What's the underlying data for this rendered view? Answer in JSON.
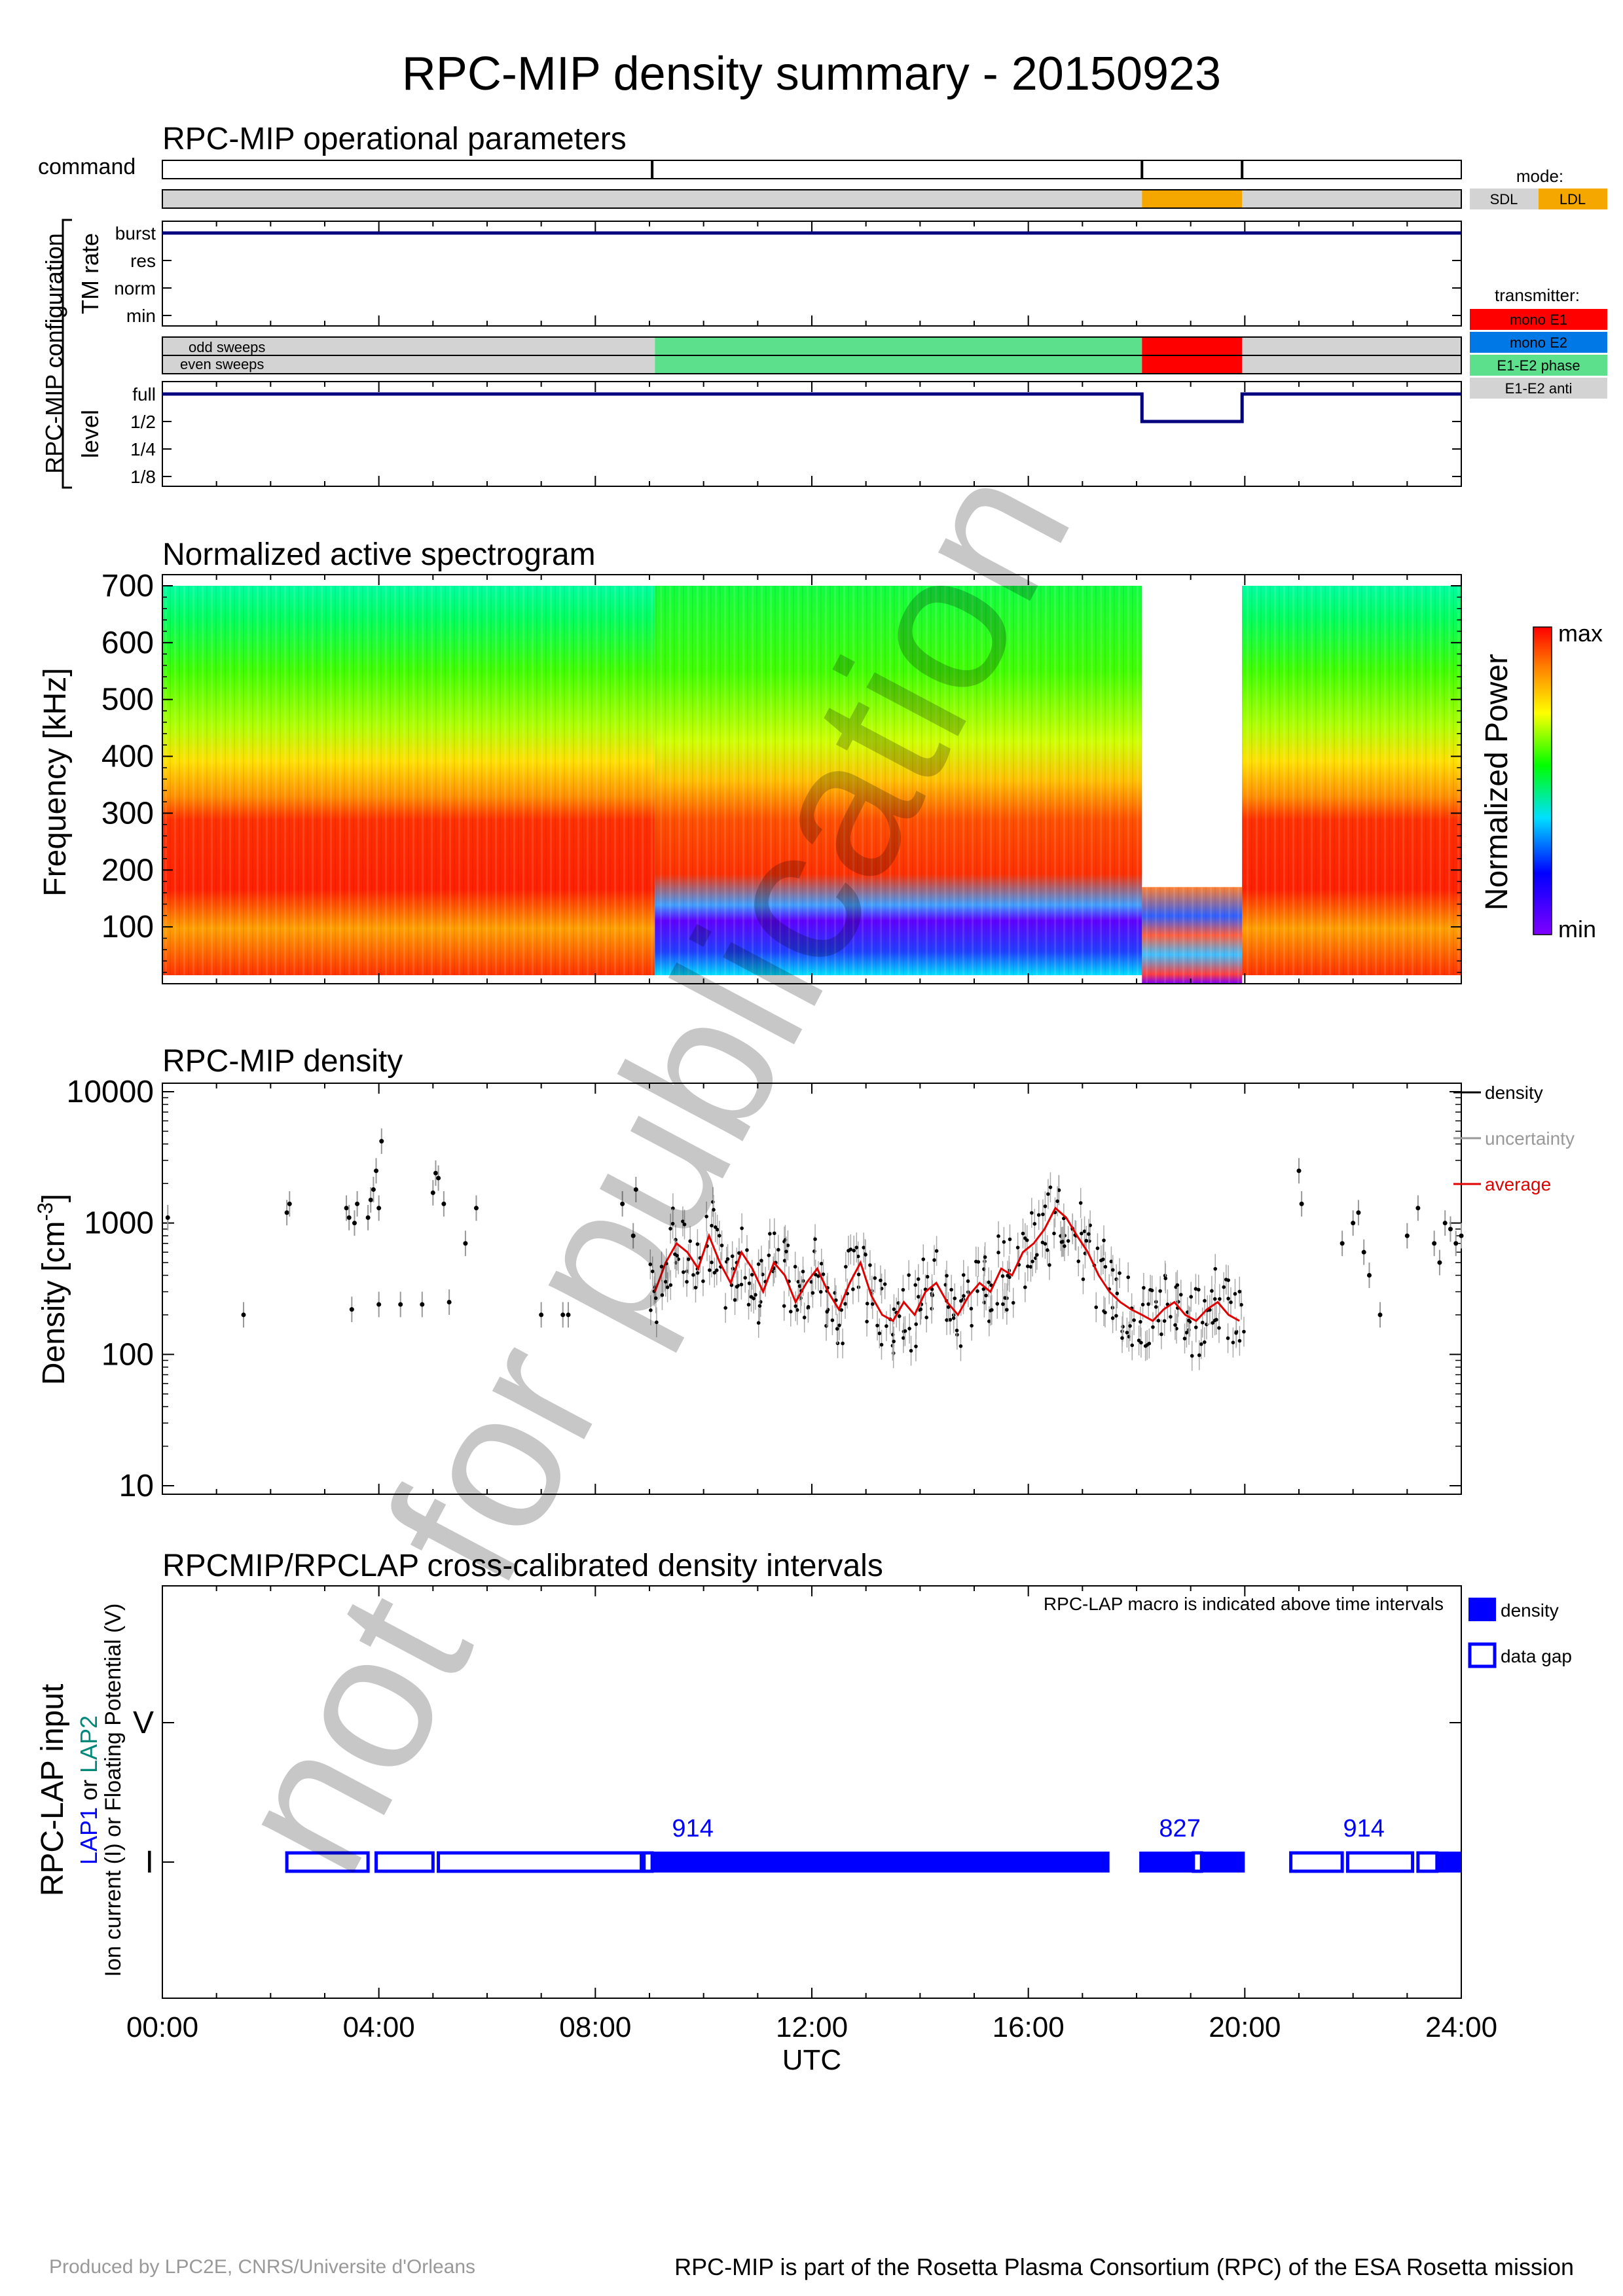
{
  "title": "RPC-MIP density summary - 20150923",
  "watermark": "not for publication",
  "footer": {
    "left": "Produced by LPC2E, CNRS/Universite d'Orleans",
    "right": "RPC-MIP is part of the Rosetta Plasma Consortium (RPC) of the ESA Rosetta mission"
  },
  "x_axis": {
    "label": "UTC",
    "ticks": [
      "00:00",
      "04:00",
      "08:00",
      "12:00",
      "16:00",
      "20:00",
      "24:00"
    ],
    "range_hours": [
      0,
      24
    ]
  },
  "colors": {
    "mode_sdl": "#d3d3d3",
    "mode_ldl": "#f5a700",
    "mono_e1": "#ff0000",
    "mono_e2": "#0078e6",
    "e1e2_phase": "#5ce08c",
    "e1e2_anti": "#d3d3d3",
    "navy": "#00007f",
    "lap_blue": "#0000ff",
    "lap2_teal": "#00897b"
  },
  "panel1": {
    "title": "RPC-MIP operational parameters",
    "command_label": "command",
    "group_label": "RPC-MIP configuration",
    "tm_label": "TM rate",
    "level_label": "level",
    "tm_levels": [
      "burst",
      "res",
      "norm",
      "min"
    ],
    "sweep_labels": [
      "odd sweeps",
      "even sweeps"
    ],
    "level_ticks": [
      "full",
      "1/2",
      "1/4",
      "1/8"
    ],
    "command_times_h": [
      9.05,
      18.1,
      19.95
    ],
    "mode_segments": [
      {
        "start": 0,
        "end": 18.1,
        "mode": "SDL"
      },
      {
        "start": 18.1,
        "end": 19.95,
        "mode": "LDL"
      },
      {
        "start": 19.95,
        "end": 24,
        "mode": "SDL"
      }
    ],
    "transmitter_segments": [
      {
        "start": 0,
        "end": 9.1,
        "tx": "E1-E2 anti"
      },
      {
        "start": 9.1,
        "end": 18.1,
        "tx": "E1-E2 phase"
      },
      {
        "start": 18.1,
        "end": 19.95,
        "tx": "mono E1"
      },
      {
        "start": 19.95,
        "end": 24,
        "tx": "E1-E2 anti"
      }
    ],
    "tm_rate_value": "burst",
    "level_segments": [
      {
        "start": 0,
        "end": 18.1,
        "level": "full"
      },
      {
        "start": 18.1,
        "end": 19.95,
        "level": "1/2"
      },
      {
        "start": 19.95,
        "end": 24,
        "level": "full"
      }
    ],
    "mode_legend": {
      "title": "mode:",
      "items": [
        "SDL",
        "LDL"
      ]
    },
    "transmitter_legend": {
      "title": "transmitter:",
      "items": [
        "mono E1",
        "mono E2",
        "E1-E2 phase",
        "E1-E2 anti"
      ]
    }
  },
  "chart_data": [
    {
      "type": "heatmap",
      "title": "Normalized active spectrogram",
      "ylabel": "Frequency [kHz]",
      "ylim": [
        0,
        700
      ],
      "yticks": [
        100,
        200,
        300,
        400,
        500,
        600,
        700
      ],
      "colorbar": {
        "label": "Normalized Power",
        "max": "max",
        "min": "min"
      },
      "blocks": [
        {
          "start": 0,
          "end": 9.1,
          "fmin": 15,
          "fmax": 700,
          "style": "sdl"
        },
        {
          "start": 9.1,
          "end": 18.1,
          "fmin": 15,
          "fmax": 700,
          "style": "sdl_low"
        },
        {
          "start": 18.1,
          "end": 19.95,
          "fmin": 0,
          "fmax": 170,
          "style": "ldl"
        },
        {
          "start": 19.95,
          "end": 24,
          "fmin": 15,
          "fmax": 700,
          "style": "sdl"
        }
      ]
    },
    {
      "type": "scatter",
      "title": "RPC-MIP density",
      "ylabel": "Density [cm",
      "ylabel_sup": "-3",
      "ylabel_end": "]",
      "yscale": "log",
      "ylim": [
        10,
        10000
      ],
      "yticks": [
        "10",
        "100",
        "1000",
        "10000"
      ],
      "legend": [
        "density",
        "uncertainty",
        "average"
      ],
      "series": [
        {
          "name": "density",
          "x": [
            0.1,
            1.5,
            2.3,
            2.35,
            3.4,
            3.45,
            3.5,
            3.55,
            3.6,
            3.8,
            3.85,
            3.9,
            3.95,
            4.0,
            4.05,
            4.0,
            4.4,
            4.8,
            5.0,
            5.05,
            5.1,
            5.2,
            5.3,
            5.6,
            5.8,
            7.0,
            7.4,
            7.5,
            8.5,
            8.7,
            8.75,
            21.0,
            21.05,
            21.8,
            22.0,
            22.1,
            22.2,
            22.3,
            22.5,
            23.0,
            23.2,
            23.5,
            23.6,
            23.7,
            23.8,
            23.9,
            24.0
          ],
          "y": [
            1100,
            200,
            1200,
            1400,
            1300,
            1100,
            220,
            1000,
            1400,
            1100,
            1500,
            1800,
            2500,
            1300,
            4200,
            240,
            240,
            240,
            1700,
            2400,
            2200,
            1400,
            250,
            700,
            1300,
            200,
            200,
            200,
            1400,
            800,
            1800,
            2500,
            1400,
            700,
            1000,
            1200,
            600,
            400,
            200,
            800,
            1300,
            700,
            500,
            1000,
            900,
            700,
            800
          ]
        },
        {
          "name": "average",
          "x": [
            9.1,
            9.3,
            9.5,
            9.7,
            9.9,
            10.1,
            10.3,
            10.5,
            10.7,
            10.9,
            11.1,
            11.3,
            11.5,
            11.7,
            11.9,
            12.1,
            12.3,
            12.5,
            12.7,
            12.9,
            13.1,
            13.3,
            13.5,
            13.7,
            13.9,
            14.1,
            14.3,
            14.5,
            14.7,
            14.9,
            15.1,
            15.3,
            15.5,
            15.7,
            15.9,
            16.1,
            16.3,
            16.5,
            16.7,
            16.9,
            17.1,
            17.3,
            17.5,
            17.7,
            17.9,
            18.1,
            18.3,
            18.5,
            18.7,
            18.9,
            19.1,
            19.3,
            19.5,
            19.7,
            19.9
          ],
          "y": [
            300,
            500,
            700,
            600,
            450,
            800,
            500,
            350,
            600,
            450,
            300,
            500,
            400,
            250,
            350,
            450,
            300,
            220,
            350,
            500,
            280,
            200,
            180,
            250,
            200,
            300,
            350,
            250,
            200,
            280,
            350,
            300,
            450,
            400,
            600,
            700,
            900,
            1300,
            1100,
            800,
            600,
            400,
            300,
            250,
            220,
            200,
            180,
            220,
            250,
            200,
            180,
            220,
            250,
            200,
            180
          ]
        }
      ]
    },
    {
      "type": "table",
      "title": "RPCMIP/RPCLAP cross-calibrated density intervals",
      "ylabel": "RPC-LAP input",
      "ylabel2_parts": [
        "LAP1",
        " or ",
        "LAP2"
      ],
      "ylabel3": "Ion current (I) or Floating Potential (V)",
      "yticks": [
        "V",
        "I"
      ],
      "note": "RPC-LAP macro is indicated above time intervals",
      "legend": [
        "density",
        "data gap"
      ],
      "macros": [
        {
          "x": 9.8,
          "label": "914"
        },
        {
          "x": 18.8,
          "label": "827"
        },
        {
          "x": 22.2,
          "label": "914"
        }
      ],
      "gaps": [
        {
          "start": 2.3,
          "end": 3.8
        },
        {
          "start": 3.95,
          "end": 5.0
        },
        {
          "start": 5.1,
          "end": 8.85
        },
        {
          "start": 8.9,
          "end": 9.05
        },
        {
          "start": 19.05,
          "end": 19.2
        },
        {
          "start": 20.85,
          "end": 21.8
        },
        {
          "start": 21.9,
          "end": 23.1
        },
        {
          "start": 23.2,
          "end": 23.55
        }
      ],
      "filled": [
        {
          "start": 9.05,
          "end": 17.5
        },
        {
          "start": 18.05,
          "end": 19.05
        },
        {
          "start": 19.2,
          "end": 20.0
        },
        {
          "start": 23.55,
          "end": 24.0
        }
      ]
    }
  ]
}
